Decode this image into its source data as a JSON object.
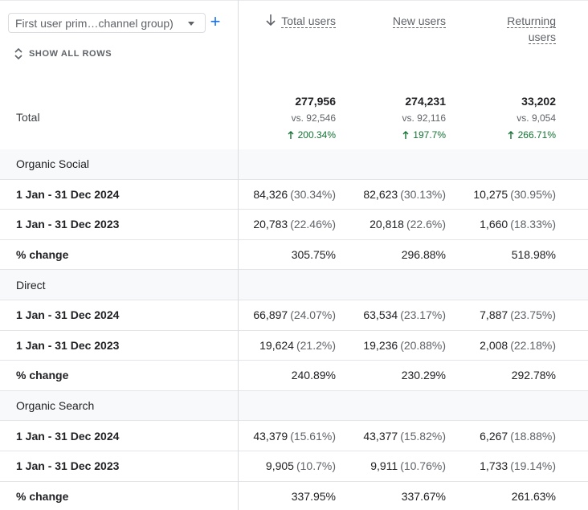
{
  "dimension_select": {
    "value": "First user prim…channel group)"
  },
  "add_dimension_label": "+",
  "show_all_rows_label": "SHOW ALL ROWS",
  "columns": [
    {
      "label": "Total users",
      "sorted": true
    },
    {
      "label": "New users",
      "sorted": false
    },
    {
      "label_line1": "Returning",
      "label_line2": "users",
      "sorted": false
    }
  ],
  "total": {
    "label": "Total",
    "values": [
      {
        "value": "277,956",
        "vs": "vs. 92,546",
        "change": "200.34%"
      },
      {
        "value": "274,231",
        "vs": "vs. 92,116",
        "change": "197.7%"
      },
      {
        "value": "33,202",
        "vs": "vs. 9,054",
        "change": "266.71%"
      }
    ]
  },
  "rows": [
    {
      "type": "group",
      "label": "Organic Social"
    },
    {
      "type": "sub",
      "label": "1 Jan - 31 Dec 2024",
      "cells": [
        [
          "84,326",
          "(30.34%)"
        ],
        [
          "82,623",
          "(30.13%)"
        ],
        [
          "10,275",
          "(30.95%)"
        ]
      ]
    },
    {
      "type": "sub",
      "label": "1 Jan - 31 Dec 2023",
      "cells": [
        [
          "20,783",
          "(22.46%)"
        ],
        [
          "20,818",
          "(22.6%)"
        ],
        [
          "1,660",
          "(18.33%)"
        ]
      ]
    },
    {
      "type": "sub",
      "label": "% change",
      "cells": [
        [
          "305.75%",
          ""
        ],
        [
          "296.88%",
          ""
        ],
        [
          "518.98%",
          ""
        ]
      ]
    },
    {
      "type": "group",
      "label": "Direct"
    },
    {
      "type": "sub",
      "label": "1 Jan - 31 Dec 2024",
      "cells": [
        [
          "66,897",
          "(24.07%)"
        ],
        [
          "63,534",
          "(23.17%)"
        ],
        [
          "7,887",
          "(23.75%)"
        ]
      ]
    },
    {
      "type": "sub",
      "label": "1 Jan - 31 Dec 2023",
      "cells": [
        [
          "19,624",
          "(21.2%)"
        ],
        [
          "19,236",
          "(20.88%)"
        ],
        [
          "2,008",
          "(22.18%)"
        ]
      ]
    },
    {
      "type": "sub",
      "label": "% change",
      "cells": [
        [
          "240.89%",
          ""
        ],
        [
          "230.29%",
          ""
        ],
        [
          "292.78%",
          ""
        ]
      ]
    },
    {
      "type": "group",
      "label": "Organic Search"
    },
    {
      "type": "sub",
      "label": "1 Jan - 31 Dec 2024",
      "cells": [
        [
          "43,379",
          "(15.61%)"
        ],
        [
          "43,377",
          "(15.82%)"
        ],
        [
          "6,267",
          "(18.88%)"
        ]
      ]
    },
    {
      "type": "sub",
      "label": "1 Jan - 31 Dec 2023",
      "cells": [
        [
          "9,905",
          "(10.7%)"
        ],
        [
          "9,911",
          "(10.76%)"
        ],
        [
          "1,733",
          "(19.14%)"
        ]
      ]
    },
    {
      "type": "sub",
      "label": "% change",
      "cells": [
        [
          "337.95%",
          ""
        ],
        [
          "337.67%",
          ""
        ],
        [
          "261.63%",
          ""
        ]
      ]
    }
  ],
  "colors": {
    "change_positive": "#137333",
    "accent": "#1a73e8"
  }
}
